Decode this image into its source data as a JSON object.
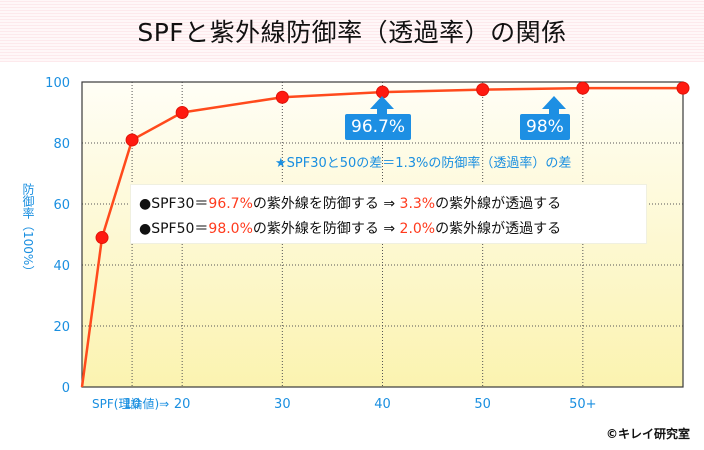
{
  "title": "SPFと紫外線防御率（透過率）の関係",
  "ylabel": "防御率（100%）",
  "copyright": "©キレイ研究室",
  "colors": {
    "line": "#ff4a1c",
    "marker": "#ff1a10",
    "callout": "#1d8fe3",
    "axis_text": "#1a8fe0",
    "highlight": "#ff3b1e"
  },
  "chart_data": {
    "type": "line",
    "title": "SPFと紫外線防御率（透過率）の関係",
    "xlabel": "SPF(理論値)⇒",
    "ylabel": "防御率（100%）",
    "x_tick_labels": [
      "10",
      "20",
      "30",
      "40",
      "50",
      "50+"
    ],
    "y_tick_labels": [
      "0",
      "20",
      "40",
      "60",
      "80",
      "100"
    ],
    "ylim": [
      0,
      100
    ],
    "xlim": [
      0,
      60
    ],
    "grid": true,
    "series": [
      {
        "x": [
          0,
          2,
          5,
          10,
          20,
          30,
          40,
          50,
          60
        ],
        "y": [
          0,
          49,
          81,
          90,
          95,
          96.7,
          97.5,
          98,
          98
        ],
        "marker_x": [
          2,
          5,
          10,
          20,
          30,
          40,
          50,
          60
        ]
      }
    ]
  },
  "annotations": {
    "callout_30": "96.7%",
    "callout_50": "98%",
    "note": "★SPF30と50の差＝1.3%の防御率（透過率）の差"
  },
  "info_lines": [
    {
      "prefix": "●SPF30＝",
      "val1": "96.7%",
      "mid": "の紫外線を防御する ⇒ ",
      "val2": "3.3%",
      "suffix": "の紫外線が透過する"
    },
    {
      "prefix": "●SPF50＝",
      "val1": "98.0%",
      "mid": "の紫外線を防御する ⇒ ",
      "val2": "2.0%",
      "suffix": "の紫外線が透過する"
    }
  ]
}
